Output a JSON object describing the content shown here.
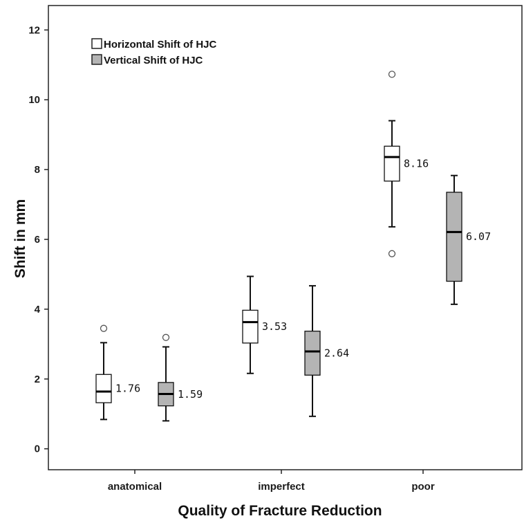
{
  "chart_data": {
    "type": "box",
    "xlabel": "Quality of Fracture Reduction",
    "ylabel": "Shift in mm",
    "ylim": [
      -0.6,
      12.7
    ],
    "yticks": [
      0,
      2,
      4,
      6,
      8,
      10,
      12
    ],
    "categories": [
      "anatomical",
      "imperfect",
      "poor"
    ],
    "grid": false,
    "legend_position": "top-left",
    "series": [
      {
        "name": "Horizontal Shift of HJC",
        "color": "#ffffff",
        "boxes": [
          {
            "category": "anatomical",
            "min": 0.84,
            "q1": 1.32,
            "median": 1.64,
            "q3": 2.13,
            "max": 3.04,
            "outliers": [
              3.45
            ],
            "annotation": "1.76"
          },
          {
            "category": "imperfect",
            "min": 2.16,
            "q1": 3.03,
            "median": 3.63,
            "q3": 3.97,
            "max": 4.94,
            "outliers": [],
            "annotation": "3.53"
          },
          {
            "category": "poor",
            "min": 6.36,
            "q1": 7.67,
            "median": 8.36,
            "q3": 8.67,
            "max": 9.4,
            "outliers": [
              10.73,
              5.59
            ],
            "annotation": "8.16"
          }
        ]
      },
      {
        "name": "Vertical Shift of HJC",
        "color": "#b4b4b4",
        "boxes": [
          {
            "category": "anatomical",
            "min": 0.8,
            "q1": 1.23,
            "median": 1.57,
            "q3": 1.9,
            "max": 2.92,
            "outliers": [
              3.19
            ],
            "annotation": "1.59"
          },
          {
            "category": "imperfect",
            "min": 0.93,
            "q1": 2.11,
            "median": 2.79,
            "q3": 3.37,
            "max": 4.67,
            "outliers": [],
            "annotation": "2.64"
          },
          {
            "category": "poor",
            "min": 4.14,
            "q1": 4.8,
            "median": 6.21,
            "q3": 7.35,
            "max": 7.83,
            "outliers": [],
            "annotation": "6.07"
          }
        ]
      }
    ]
  }
}
